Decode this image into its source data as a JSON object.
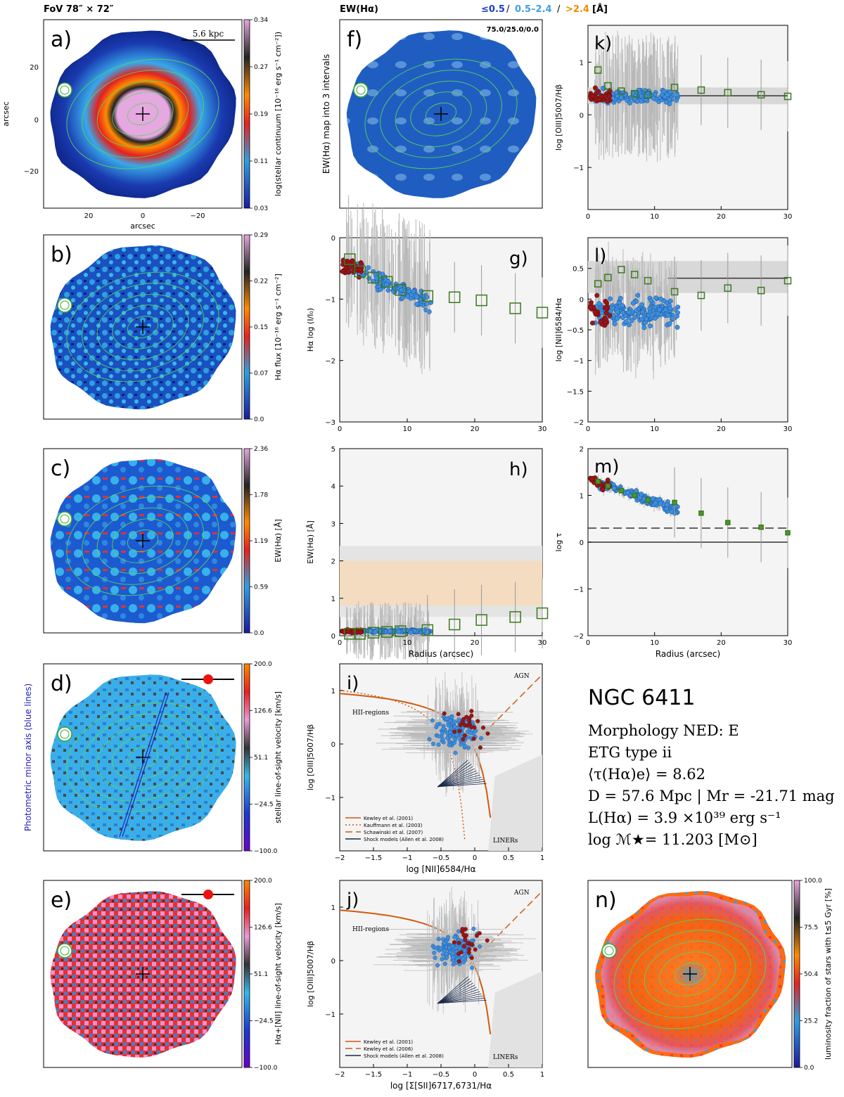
{
  "header": {
    "fov": "FoV 78″ × 72″",
    "ew_title": "EW(Hα)",
    "ew_legend": [
      {
        "text": "≤0.5",
        "color": "#1f3fd0"
      },
      {
        "text": "0.5–2.4",
        "color": "#3fa0e0"
      },
      {
        "text": ">2.4",
        "color": "#f28a00"
      }
    ],
    "ew_unit": "[Å]",
    "divider": "/"
  },
  "maps": {
    "a": {
      "letter": "a)",
      "cbar_label": "log(stellar continuum [10⁻¹⁶ erg s⁻¹ cm⁻²])",
      "ticks": [
        "0.34",
        "0.27",
        "0.19",
        "0.11",
        "0.03"
      ],
      "scale_text": "5.6 kpc",
      "x_axis": "arcsec",
      "y_axis": "arcsec",
      "x_ticks": [
        "20",
        "0",
        "−20"
      ],
      "y_ticks": [
        "20",
        "0",
        "−20"
      ]
    },
    "b": {
      "letter": "b)",
      "cbar_label": "Hα flux [10⁻¹⁶ erg s⁻¹ cm⁻²]",
      "ticks": [
        "0.29",
        "0.22",
        "0.15",
        "0.07",
        "0.0"
      ]
    },
    "c": {
      "letter": "c)",
      "cbar_label": "EW(Hα) [Å]",
      "ticks": [
        "2.36",
        "1.78",
        "1.19",
        "0.59",
        "0.0"
      ]
    },
    "d": {
      "letter": "d)",
      "cbar_label": "stellar line-of-sight velocity [km/s]",
      "ticks": [
        "200.0",
        "126.6",
        "51.1",
        "−24.5",
        "−100.0"
      ],
      "side_label": "Photometric minor axis (blue lines)"
    },
    "e": {
      "letter": "e)",
      "cbar_label": "Hα+[NII] line-of-sight velocity [km/s]",
      "ticks": [
        "200.0",
        "126.6",
        "51.1",
        "−24.5",
        "−100.0"
      ]
    },
    "f": {
      "letter": "f)",
      "side_label": "EW(Hα) map into 3 intervals",
      "percent_text": "75.0/25.0/0.0"
    },
    "n": {
      "letter": "n)",
      "cbar_label": "luminosity fraction of stars with t≤5 Gyr [%]",
      "ticks": [
        "100.0",
        "75.5",
        "50.4",
        "25.2",
        "0.0"
      ]
    }
  },
  "chart_data": [
    {
      "panel": "g",
      "type": "scatter",
      "letter": "g)",
      "ylabel": "Hα log (I/I₀)",
      "xlim": [
        0,
        30
      ],
      "ylim": [
        -3,
        0
      ],
      "xticks": [
        "0",
        "10",
        "20",
        "30"
      ],
      "yticks": [
        "0",
        "−1",
        "−2",
        "−3"
      ],
      "profile_x": [
        1.5,
        3,
        5,
        7,
        9,
        13,
        17,
        21,
        26,
        30
      ],
      "profile_y": [
        -0.35,
        -0.55,
        -0.65,
        -0.72,
        -0.85,
        -0.95,
        -0.97,
        -1.02,
        -1.15,
        -1.22
      ]
    },
    {
      "panel": "h",
      "type": "scatter",
      "letter": "h)",
      "xlabel": "Radius (arcsec)",
      "ylabel": "EW(Hα) [Å]",
      "xlim": [
        0,
        30
      ],
      "ylim": [
        0,
        5
      ],
      "xticks": [
        "0",
        "10",
        "20",
        "30"
      ],
      "yticks": [
        "0",
        "1",
        "2",
        "3",
        "4",
        "5"
      ],
      "profile_x": [
        1.5,
        3,
        5,
        7,
        9,
        13,
        17,
        21,
        26,
        30
      ],
      "profile_y": [
        0.05,
        0.05,
        0.08,
        0.1,
        0.12,
        0.15,
        0.3,
        0.42,
        0.5,
        0.6
      ]
    },
    {
      "panel": "k",
      "type": "scatter",
      "letter": "k)",
      "ylabel": "log [OIII]5007/Hβ",
      "xlim": [
        0,
        30
      ],
      "ylim": [
        -1.8,
        1.7
      ],
      "xticks": [
        "0",
        "10",
        "20",
        "30"
      ],
      "yticks": [
        "1",
        "0",
        "−1"
      ],
      "profile_x": [
        1.5,
        3,
        5,
        7,
        9,
        13,
        17,
        21,
        26,
        30
      ],
      "profile_y": [
        0.85,
        0.55,
        0.45,
        0.4,
        0.38,
        0.52,
        0.47,
        0.42,
        0.38,
        0.35
      ],
      "median": 0.36
    },
    {
      "panel": "l",
      "type": "scatter",
      "letter": "l)",
      "ylabel": "log [NII]6584/Hα",
      "xlim": [
        0,
        30
      ],
      "ylim": [
        -2,
        1
      ],
      "xticks": [
        "0",
        "10",
        "20",
        "30"
      ],
      "yticks": [
        "0.5",
        "0",
        "−0.5",
        "−1",
        "−1.5",
        "−2"
      ],
      "profile_x": [
        1.5,
        3,
        5,
        7,
        9,
        13,
        17,
        21,
        26,
        30
      ],
      "profile_y": [
        0.25,
        0.35,
        0.48,
        0.4,
        0.3,
        0.12,
        0.06,
        0.18,
        0.14,
        0.3
      ],
      "median": 0.34
    },
    {
      "panel": "m",
      "type": "scatter",
      "letter": "m)",
      "xlabel": "Radius (arcsec)",
      "ylabel": "log τ",
      "xlim": [
        0,
        30
      ],
      "ylim": [
        -2,
        2
      ],
      "xticks": [
        "0",
        "10",
        "20",
        "30"
      ],
      "yticks": [
        "2",
        "1",
        "0",
        "−1",
        "−2"
      ],
      "profile_x": [
        1.5,
        3,
        5,
        7,
        9,
        13,
        17,
        21,
        26,
        30
      ],
      "profile_y": [
        1.3,
        1.2,
        1.1,
        1.0,
        0.9,
        0.85,
        0.62,
        0.42,
        0.32,
        0.2
      ],
      "dashed": 0.3
    },
    {
      "panel": "i",
      "type": "scatter",
      "letter": "i)",
      "xlabel": "log [NII]6584/Hα",
      "ylabel": "log [OIII]5007/Hβ",
      "xlim": [
        -2,
        1
      ],
      "ylim": [
        -2,
        1.5
      ],
      "xticks": [
        "−2",
        "−1.5",
        "−1",
        "−0.5",
        "0",
        "0.5",
        "1"
      ],
      "yticks": [
        "1",
        "0",
        "−1"
      ],
      "region_labels": [
        "AGN",
        "HII-regions",
        "LINERs"
      ],
      "legend": [
        "Kewley et al. (2001)",
        "Kauffmann et al. (2003)",
        "Schawinski et al. (2007)",
        "Shock models (Allen et al. 2008)"
      ]
    },
    {
      "panel": "j",
      "type": "scatter",
      "letter": "j)",
      "xlabel": "log [Σ[SII]6717,6731/Hα",
      "ylabel": "log [OIII]5007/Hβ",
      "xlim": [
        -2,
        1
      ],
      "ylim": [
        -2,
        1.5
      ],
      "xticks": [
        "−2",
        "−1.5",
        "−1",
        "−0.5",
        "0",
        "0.5",
        "1"
      ],
      "yticks": [
        "1",
        "0",
        "−1"
      ],
      "region_labels": [
        "AGN",
        "HII-regions",
        "LINERs"
      ],
      "legend": [
        "Kewley et al. (2001)",
        "Kewley et al. (2006)",
        "Shock models (Allen et al. 2008)"
      ]
    }
  ],
  "galaxy": {
    "name": "NGC 6411",
    "lines": [
      "Morphology NED: E",
      "ETG type ii",
      "⟨τ(Hα)e⟩ = 8.62",
      "D = 57.6 Mpc | Mr = -21.71 mag",
      "L(Hα) = 3.9 ×10³⁹ erg s⁻¹",
      "log ℳ★= 11.203 [M⊙]"
    ]
  },
  "colors": {
    "red_pts": "#9a1515",
    "blue_pts": "#3c8fe0",
    "green_box": "#3a7a1a",
    "band_orange": "#f3dcc0"
  }
}
